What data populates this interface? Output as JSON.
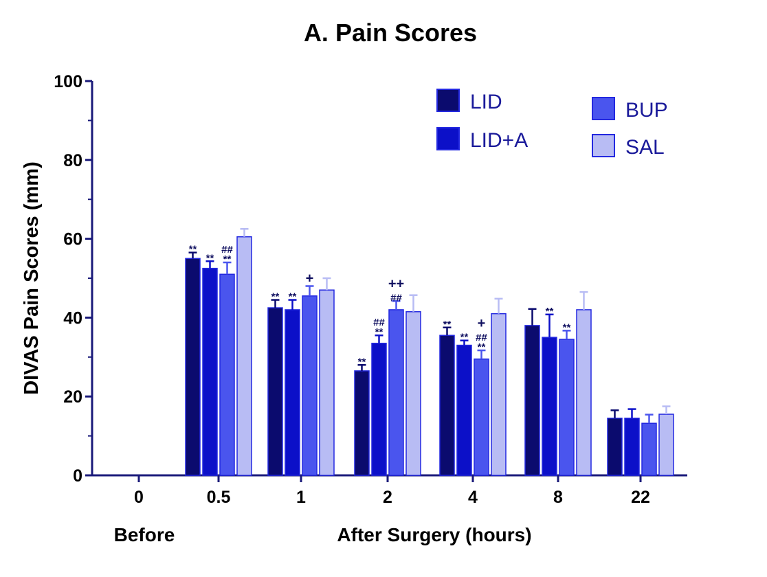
{
  "chart_data": {
    "type": "bar",
    "title": "A. Pain Scores",
    "ylabel": "DIVAS Pain Scores (mm)",
    "ylim": [
      0,
      100
    ],
    "yticks": [
      "0",
      "20",
      "40",
      "60",
      "80",
      "100"
    ],
    "categories": [
      "0",
      "0.5",
      "1",
      "2",
      "4",
      "8",
      "22"
    ],
    "group_labels": [
      "Before",
      "After Surgery (hours)"
    ],
    "colors": {
      "LID": "#0b0b6e",
      "LID+A": "#0c10c8",
      "BUP": "#4a55ee",
      "SAL": "#b8bcf4",
      "border": "#2328e0",
      "axis": "#1a1a7a"
    },
    "series": [
      {
        "name": "LID",
        "values": [
          null,
          55,
          42.5,
          26.5,
          35.5,
          38,
          14.5
        ],
        "errors": [
          null,
          1.5,
          2,
          1.5,
          2,
          4.2,
          2
        ]
      },
      {
        "name": "LID+A",
        "values": [
          null,
          52.5,
          42,
          33.5,
          33,
          35,
          14.5
        ],
        "errors": [
          null,
          1.8,
          2.5,
          2,
          1.2,
          5.8,
          2.3
        ]
      },
      {
        "name": "BUP",
        "values": [
          null,
          51,
          45.5,
          42,
          29.5,
          34.5,
          13.2
        ],
        "errors": [
          null,
          3,
          2.5,
          2.2,
          2.2,
          2.2,
          2.2
        ]
      },
      {
        "name": "SAL",
        "values": [
          null,
          60.5,
          47,
          41.5,
          41,
          42,
          15.5
        ],
        "errors": [
          null,
          2,
          3,
          4.2,
          3.8,
          4.5,
          2
        ]
      }
    ],
    "annotations": [
      {
        "category": 1,
        "series": 0,
        "lines": [
          "**"
        ]
      },
      {
        "category": 1,
        "series": 1,
        "lines": [
          "**"
        ]
      },
      {
        "category": 1,
        "series": 2,
        "lines": [
          "##",
          "**"
        ]
      },
      {
        "category": 2,
        "series": 0,
        "lines": [
          "**"
        ]
      },
      {
        "category": 2,
        "series": 1,
        "lines": [
          "**"
        ]
      },
      {
        "category": 2,
        "series": 2,
        "lines": [
          "+"
        ]
      },
      {
        "category": 3,
        "series": 0,
        "lines": [
          "**"
        ]
      },
      {
        "category": 3,
        "series": 1,
        "lines": [
          "##",
          "**"
        ]
      },
      {
        "category": 3,
        "series": 2,
        "lines": [
          "++",
          "##"
        ]
      },
      {
        "category": 4,
        "series": 0,
        "lines": [
          "**"
        ]
      },
      {
        "category": 4,
        "series": 1,
        "lines": [
          "**"
        ]
      },
      {
        "category": 4,
        "series": 2,
        "lines": [
          "+",
          "##",
          "**"
        ]
      },
      {
        "category": 5,
        "series": 1,
        "lines": [
          "**"
        ]
      },
      {
        "category": 5,
        "series": 2,
        "lines": [
          "**"
        ]
      }
    ],
    "legend": {
      "placement": "top-right",
      "columns": [
        [
          "LID",
          "LID+A"
        ],
        [
          "BUP",
          "SAL"
        ]
      ]
    }
  }
}
